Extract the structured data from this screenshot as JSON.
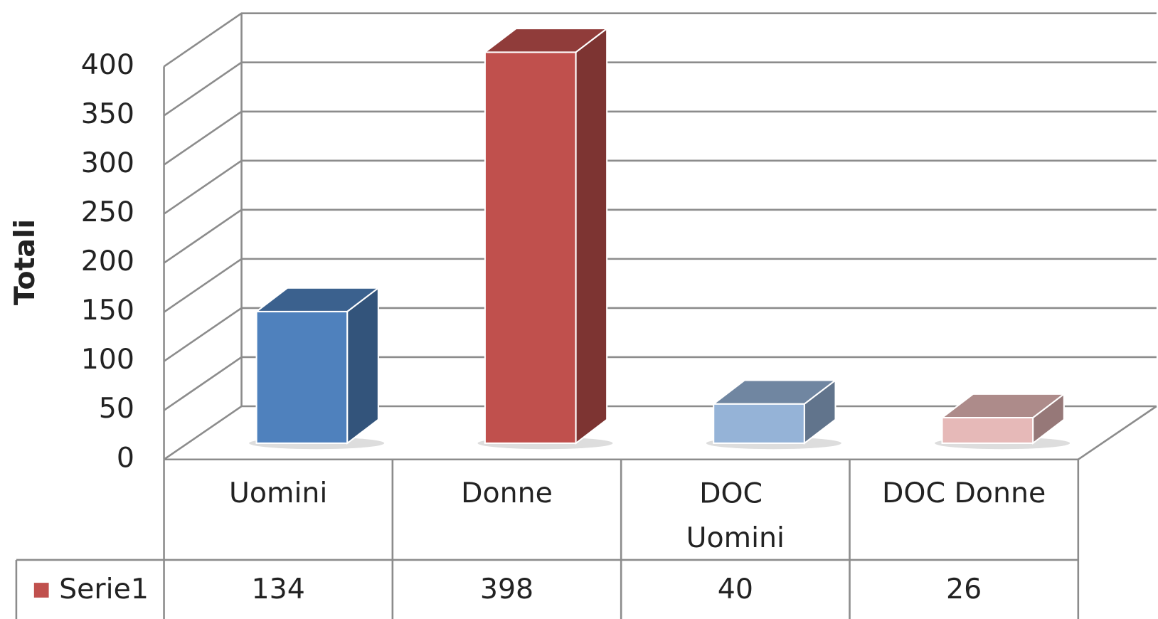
{
  "chart_data": {
    "type": "bar3d",
    "y_label": "Totali",
    "categories": [
      "Uomini",
      "Donne",
      "DOC Uomini",
      "DOC Donne"
    ],
    "series": [
      {
        "name": "Serie1",
        "color": "#c0504d",
        "values": [
          134,
          398,
          40,
          26
        ]
      }
    ],
    "colors": [
      "#4f81bd",
      "#c0504d",
      "#95b3d7",
      "#e6b9b8"
    ],
    "ylim": [
      0,
      400
    ],
    "yticks": [
      0,
      50,
      100,
      150,
      200,
      250,
      300,
      350,
      400
    ],
    "grid": true,
    "data_table": true
  }
}
